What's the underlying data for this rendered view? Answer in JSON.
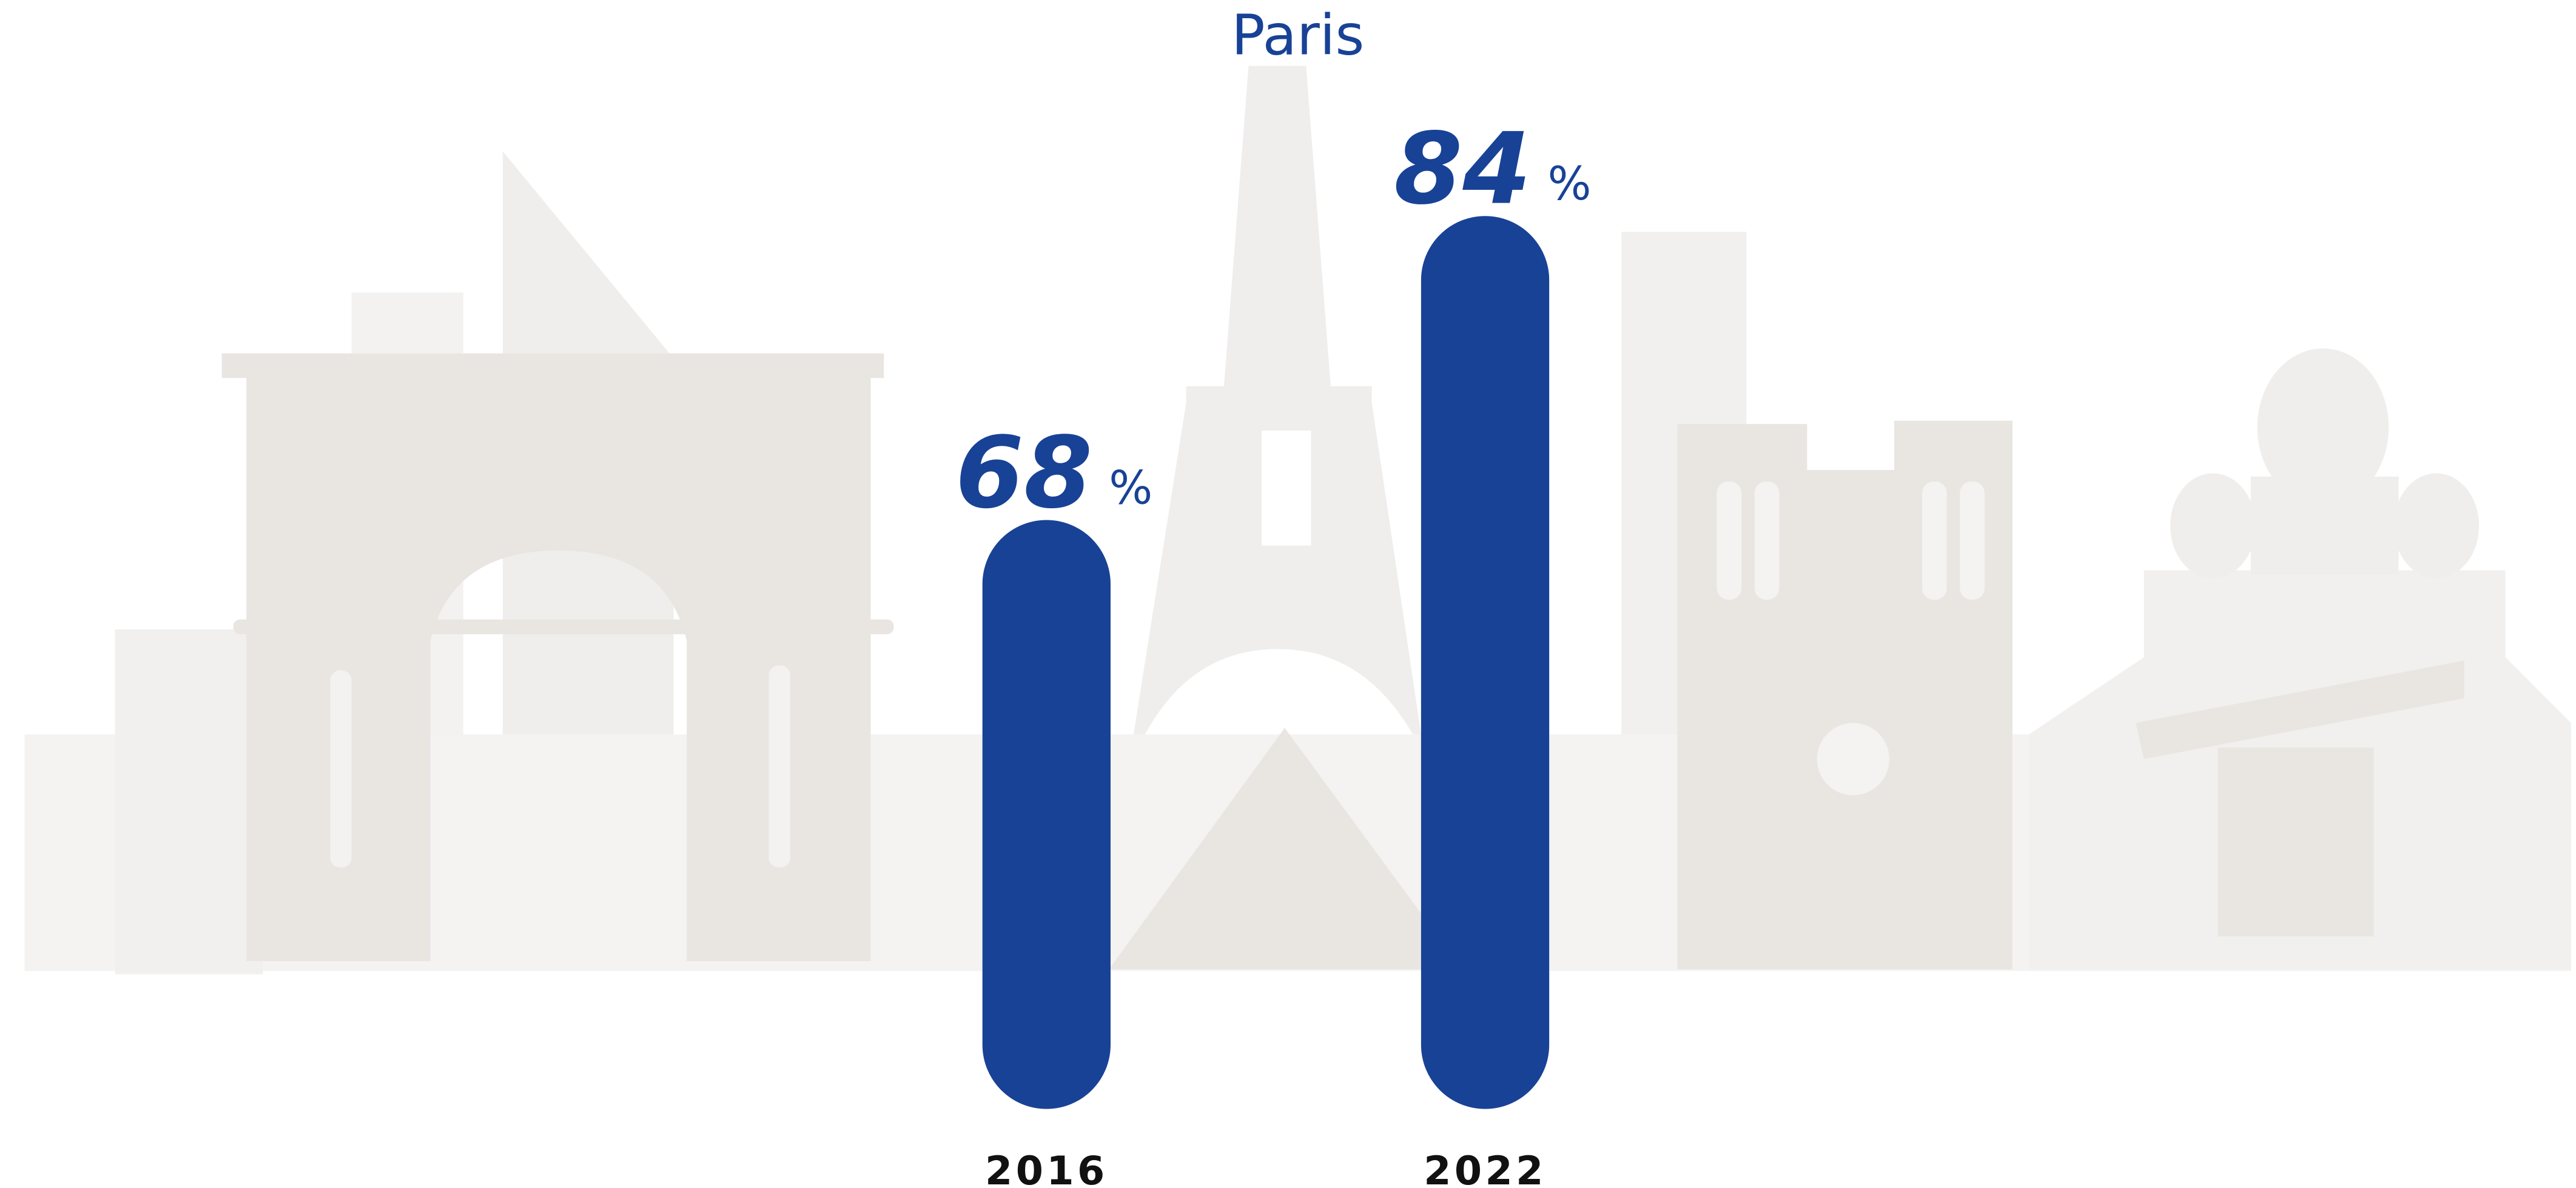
{
  "chart_data": {
    "type": "bar",
    "title": "Paris",
    "categories": [
      "2016",
      "2022"
    ],
    "values": [
      68,
      84
    ],
    "unit": "%",
    "color": "#184296",
    "ylim": [
      37,
      90
    ]
  }
}
